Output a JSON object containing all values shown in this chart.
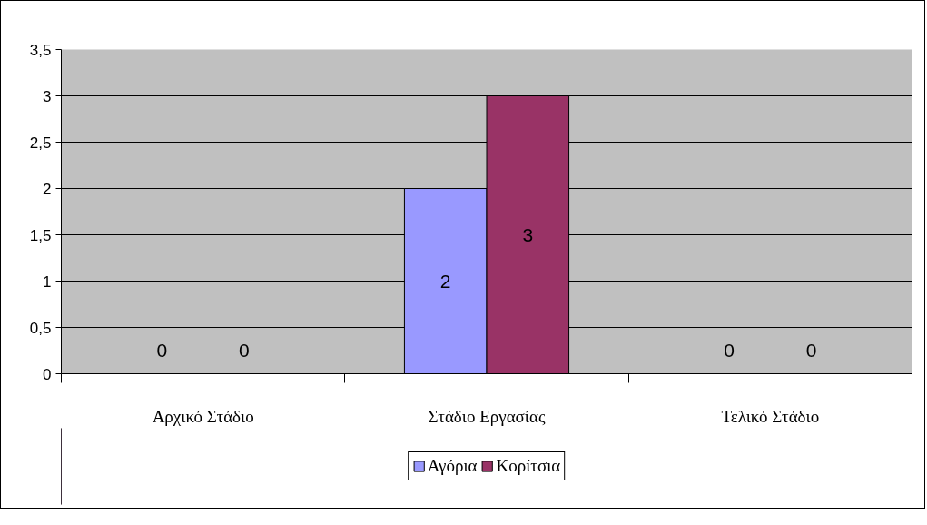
{
  "chart_data": {
    "type": "bar",
    "categories": [
      "Αρχικό Στάδιο",
      "Στάδιο Εργασίας",
      "Τελικό Στάδιο"
    ],
    "series": [
      {
        "name": "Αγόρια",
        "color": "#9999ff",
        "values": [
          0,
          2,
          0
        ]
      },
      {
        "name": "Κορίτσια",
        "color": "#993366",
        "values": [
          0,
          3,
          0
        ]
      }
    ],
    "ylim": [
      0,
      3.5
    ],
    "yticks": [
      0,
      {
        "value": 0.5,
        "label": "0,5"
      },
      1,
      {
        "value": 1.5,
        "label": "1,5"
      },
      2,
      {
        "value": 2.5,
        "label": "2,5"
      },
      3,
      {
        "value": 3.5,
        "label": "3,5"
      }
    ],
    "grid": "y",
    "legend": "bottom",
    "data_labels": true
  }
}
